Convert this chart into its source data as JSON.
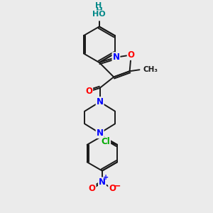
{
  "bg_color": "#ebebeb",
  "bond_color": "#1a1a1a",
  "atom_colors": {
    "N": "#0000ff",
    "O": "#ff0000",
    "Cl": "#00aa00",
    "H": "#008888",
    "C": "#1a1a1a"
  },
  "bond_width": 1.4,
  "figsize": [
    3.0,
    3.0
  ],
  "dpi": 100
}
